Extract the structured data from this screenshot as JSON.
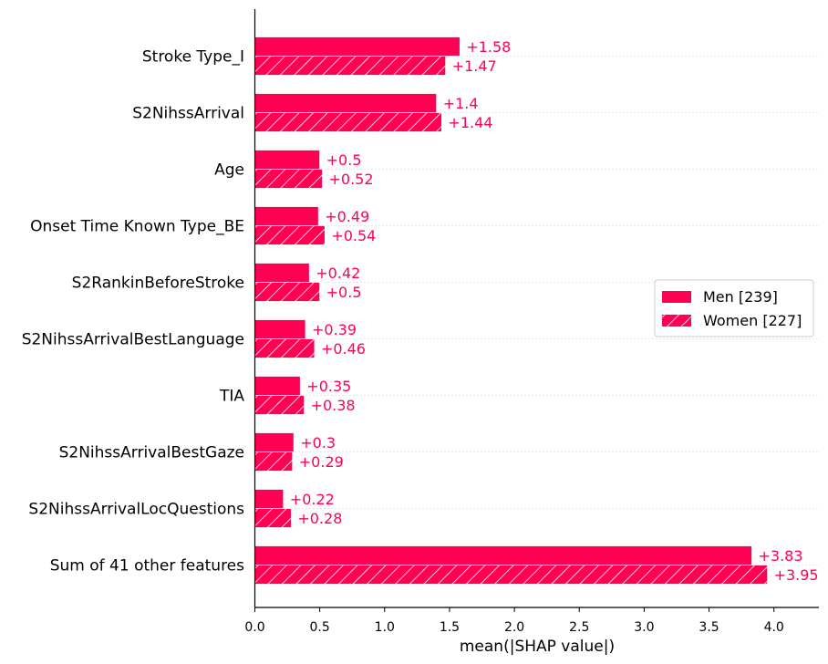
{
  "chart_data": {
    "type": "bar",
    "orientation": "horizontal",
    "title": "",
    "xlabel": "mean(|SHAP value|)",
    "ylabel": "",
    "xlim": [
      0,
      4.35
    ],
    "xticks": [
      "0.0",
      "0.5",
      "1.0",
      "1.5",
      "2.0",
      "2.5",
      "3.0",
      "3.5",
      "4.0"
    ],
    "categories": [
      "Stroke Type_I",
      "S2NihssArrival",
      "Age",
      "Onset Time Known Type_BE",
      "S2RankinBeforeStroke",
      "S2NihssArrivalBestLanguage",
      "TIA",
      "S2NihssArrivalBestGaze",
      "S2NihssArrivalLocQuestions",
      "Sum of 41 other features"
    ],
    "series": [
      {
        "name": "Men [239]",
        "hatch": false,
        "values": [
          1.58,
          1.4,
          0.5,
          0.49,
          0.42,
          0.39,
          0.35,
          0.3,
          0.22,
          3.83
        ],
        "labels": [
          "+1.58",
          "+1.4",
          "+0.5",
          "+0.49",
          "+0.42",
          "+0.39",
          "+0.35",
          "+0.3",
          "+0.22",
          "+3.83"
        ]
      },
      {
        "name": "Women [227]",
        "hatch": true,
        "values": [
          1.47,
          1.44,
          0.52,
          0.54,
          0.5,
          0.46,
          0.38,
          0.29,
          0.28,
          3.95
        ],
        "labels": [
          "+1.47",
          "+1.44",
          "+0.52",
          "+0.54",
          "+0.5",
          "+0.46",
          "+0.38",
          "+0.29",
          "+0.28",
          "+3.95"
        ]
      }
    ],
    "bar_color": "#ff0052",
    "label_color": "#ff0052",
    "grid": "dotted horizontal per category",
    "legend_position": "center-right"
  }
}
